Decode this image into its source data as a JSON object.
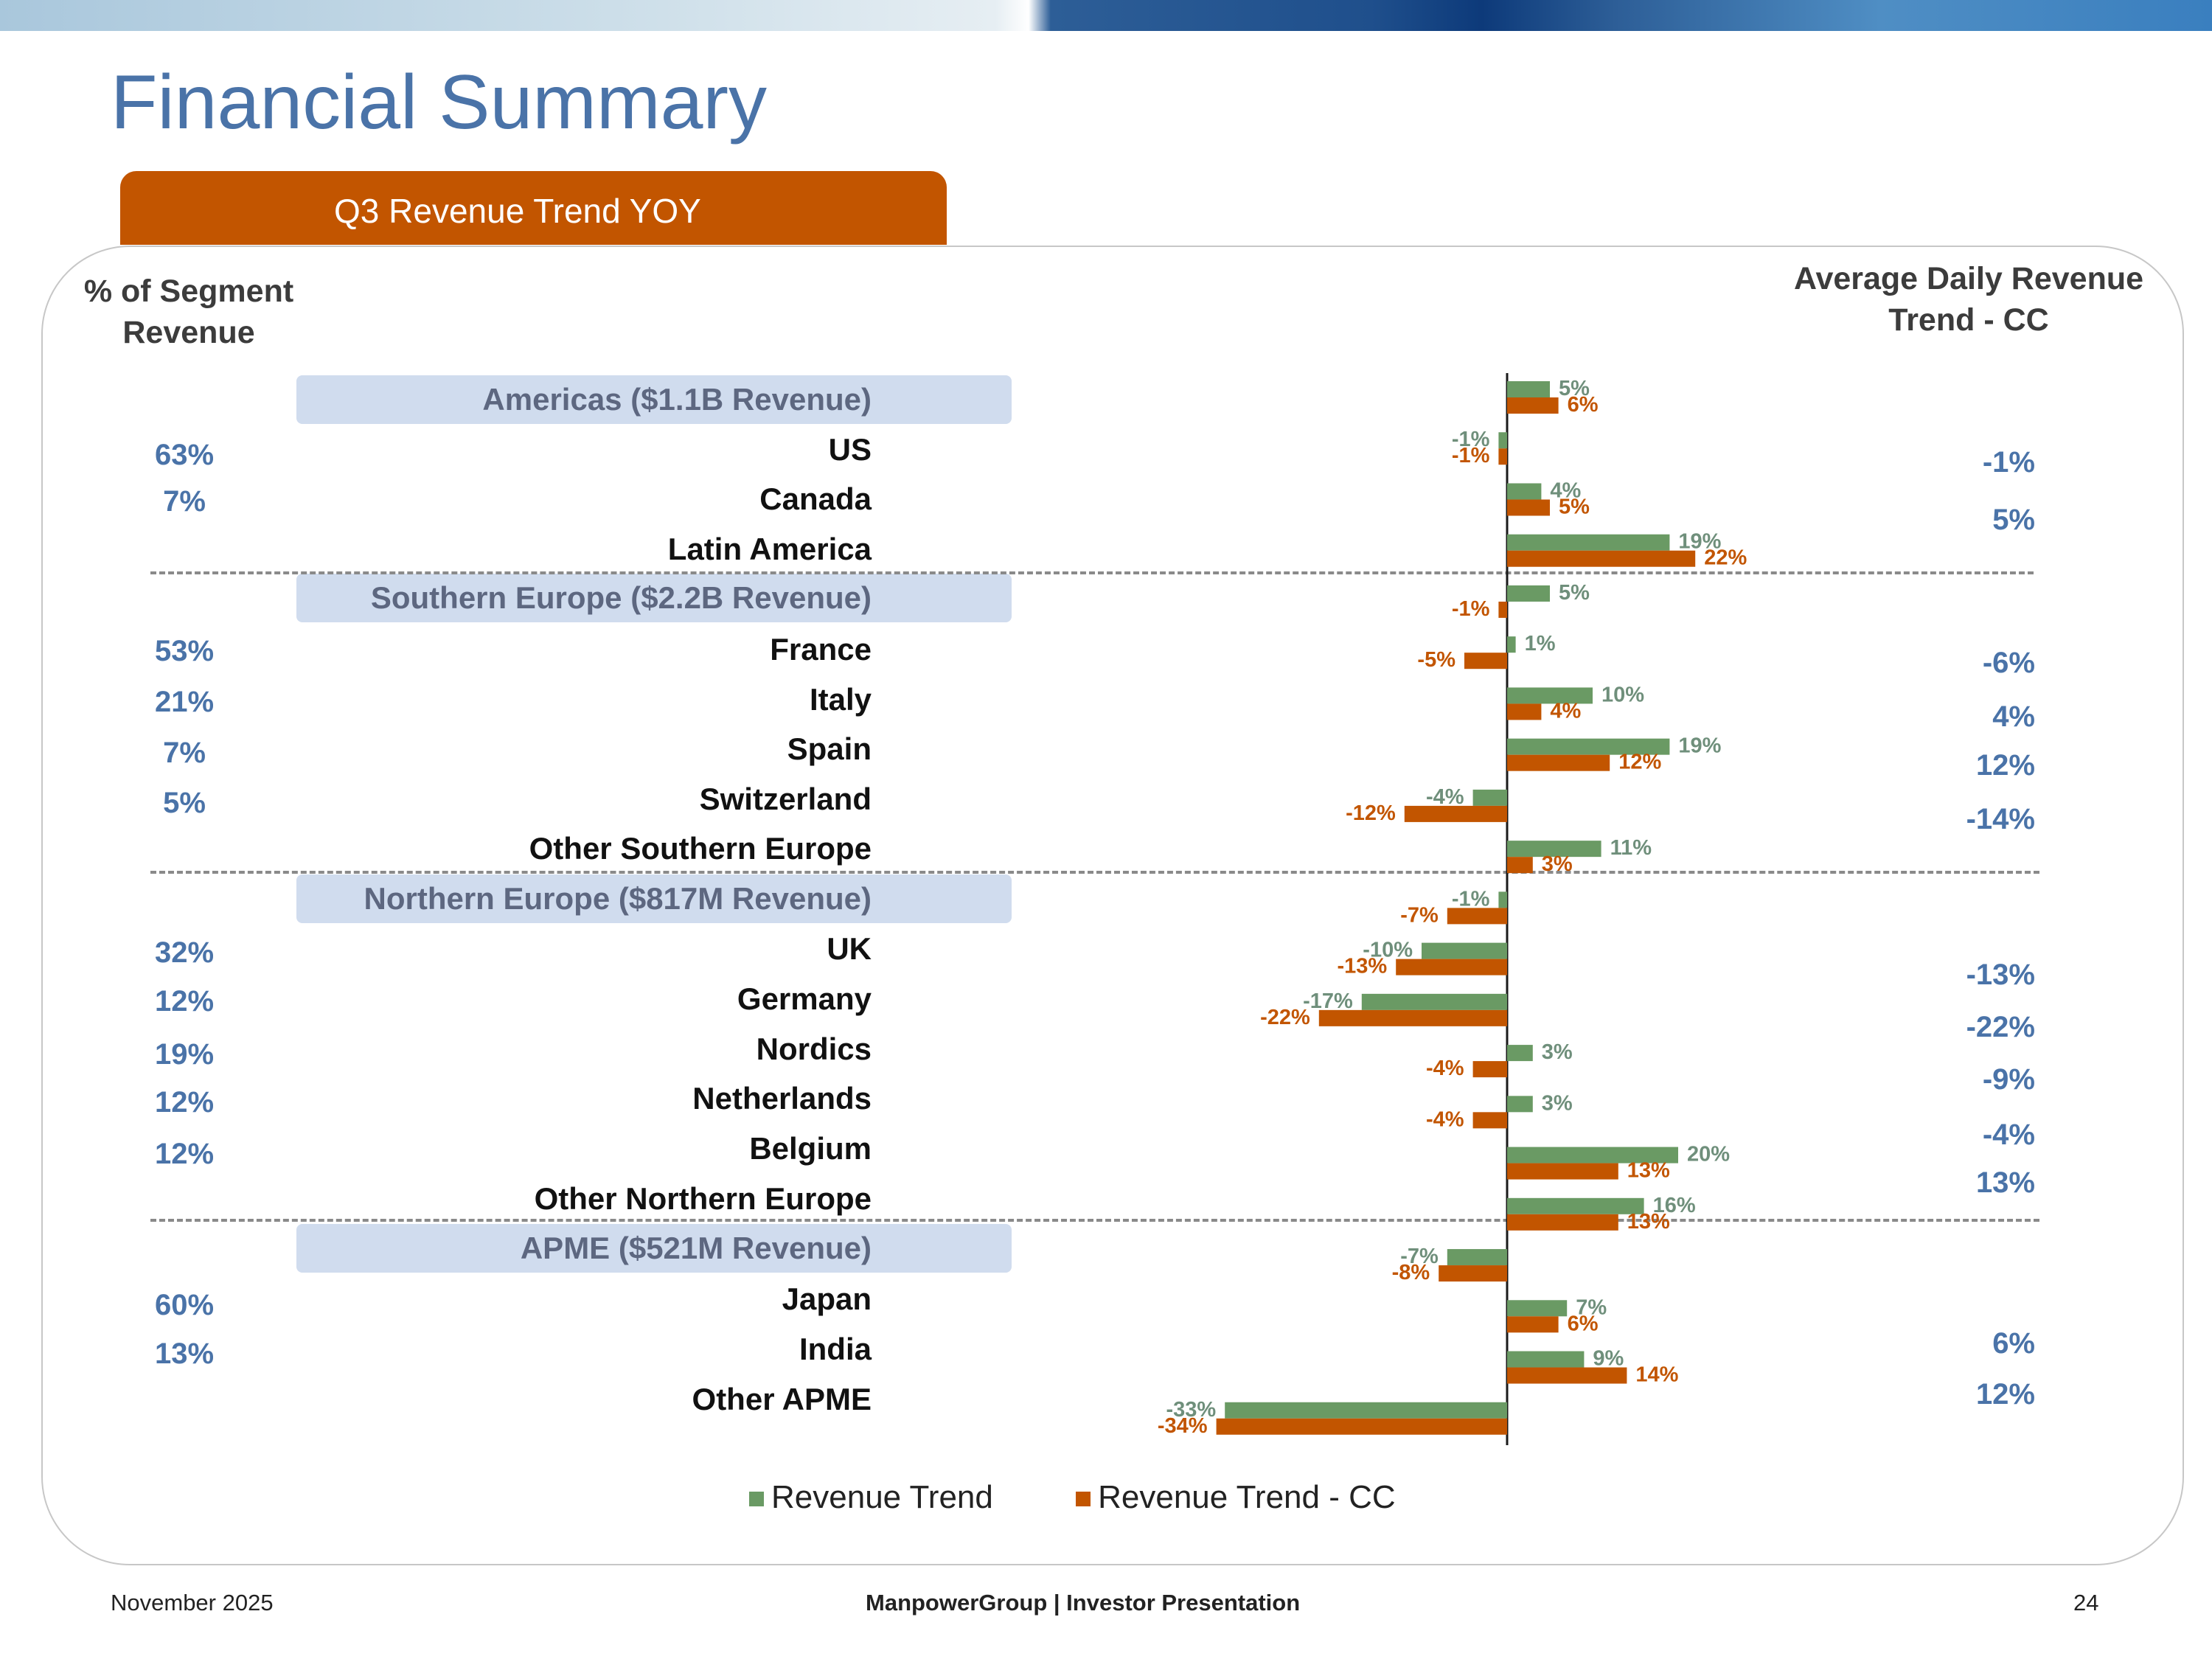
{
  "slide": {
    "title": "Financial Summary",
    "banner": "Q3 Revenue Trend YOY",
    "left_header": "% of Segment Revenue",
    "right_header": "Average Daily Revenue Trend - CC",
    "footer_date": "November 2025",
    "footer_center": "ManpowerGroup  |  Investor Presentation",
    "page_number": "24"
  },
  "regions": [
    "Americas ($1.1B Revenue)",
    "Southern Europe ($2.2B Revenue)",
    "Northern Europe ($817M Revenue)",
    "APME ($521M Revenue)"
  ],
  "rows": [
    {
      "label": "US",
      "segment_pct": "63%",
      "adr_cc": "-1%"
    },
    {
      "label": "Canada",
      "segment_pct": "7%",
      "adr_cc": "5%"
    },
    {
      "label": "Latin America",
      "segment_pct": "",
      "adr_cc": ""
    },
    {
      "label": "France",
      "segment_pct": "53%",
      "adr_cc": "-6%"
    },
    {
      "label": "Italy",
      "segment_pct": "21%",
      "adr_cc": "4%"
    },
    {
      "label": "Spain",
      "segment_pct": "7%",
      "adr_cc": "12%"
    },
    {
      "label": "Switzerland",
      "segment_pct": "5%",
      "adr_cc": "-14%"
    },
    {
      "label": "Other Southern Europe",
      "segment_pct": "",
      "adr_cc": ""
    },
    {
      "label": "UK",
      "segment_pct": "32%",
      "adr_cc": "-13%"
    },
    {
      "label": "Germany",
      "segment_pct": "12%",
      "adr_cc": "-22%"
    },
    {
      "label": "Nordics",
      "segment_pct": "19%",
      "adr_cc": "-9%"
    },
    {
      "label": "Netherlands",
      "segment_pct": "12%",
      "adr_cc": "-4%"
    },
    {
      "label": "Belgium",
      "segment_pct": "12%",
      "adr_cc": "13%"
    },
    {
      "label": "Other Northern Europe",
      "segment_pct": "",
      "adr_cc": ""
    },
    {
      "label": "Japan",
      "segment_pct": "60%",
      "adr_cc": ""
    },
    {
      "label": "India",
      "segment_pct": "13%",
      "adr_cc": "6%"
    },
    {
      "label": "Other APME",
      "segment_pct": "",
      "adr_cc": "12%"
    }
  ],
  "chart_data": {
    "type": "bar",
    "orientation": "horizontal",
    "categories": [
      "Americas",
      "US",
      "Canada",
      "Latin America",
      "Southern Europe",
      "France",
      "Italy",
      "Spain",
      "Switzerland",
      "Other Southern Europe",
      "Northern Europe",
      "UK",
      "Germany",
      "Nordics",
      "Netherlands",
      "Belgium",
      "Other Northern Europe",
      "APME",
      "Japan",
      "India",
      "Other APME"
    ],
    "series": [
      {
        "name": "Revenue Trend",
        "color": "#6a9a64",
        "values": [
          5,
          -1,
          4,
          19,
          5,
          1,
          10,
          19,
          -4,
          11,
          -1,
          -10,
          -17,
          3,
          3,
          20,
          16,
          -7,
          7,
          9,
          -33
        ],
        "labels": [
          "5%",
          "-1%",
          "4%",
          "19%",
          "5%",
          "1%",
          "10%",
          "19%",
          "-4%",
          "11%",
          "-1%",
          "-10%",
          "-17%",
          "3%",
          "3%",
          "20%",
          "16%",
          "-7%",
          "7%",
          "9%",
          "-33%"
        ]
      },
      {
        "name": "Revenue Trend - CC",
        "color": "#c25500",
        "values": [
          6,
          -1,
          5,
          22,
          -1,
          -5,
          4,
          12,
          -12,
          3,
          -7,
          -13,
          -22,
          -4,
          -4,
          13,
          13,
          -8,
          6,
          14,
          -34
        ],
        "labels": [
          "6%",
          "-1%",
          "5%",
          "22%",
          "-1%",
          "-5%",
          "4%",
          "12%",
          "-12%",
          "3%",
          "-7%",
          "-13%",
          "-22%",
          "-4%",
          "-4%",
          "13%",
          "13%",
          "-8%",
          "6%",
          "14%",
          "-34%"
        ]
      }
    ],
    "legend": "bottom"
  }
}
